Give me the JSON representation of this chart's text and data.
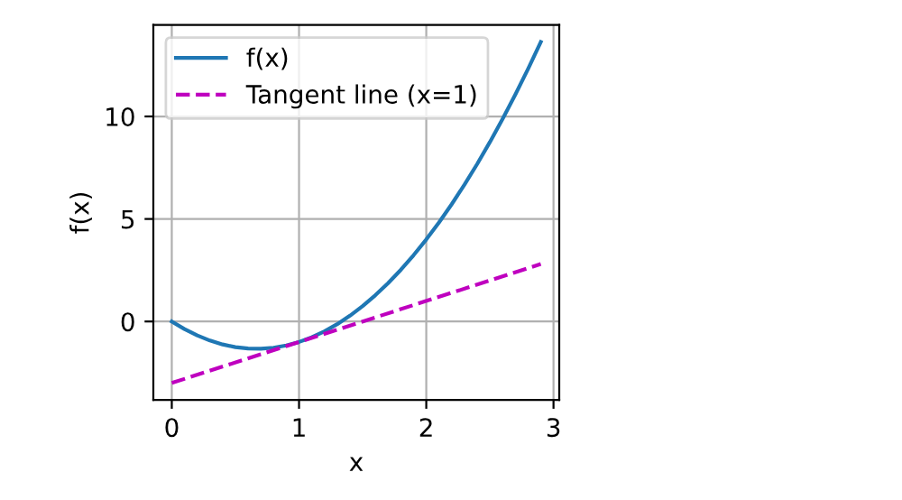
{
  "chart_data": {
    "type": "line",
    "xlabel": "x",
    "ylabel": "f(x)",
    "xlim": [
      -0.145,
      3.045
    ],
    "ylim": [
      -3.83,
      14.46
    ],
    "xticks": [
      0,
      1,
      2,
      3
    ],
    "yticks": [
      0,
      5,
      10
    ],
    "grid": true,
    "legend": "top left",
    "series": [
      {
        "name": "f(x)",
        "color": "#1f77b4",
        "line_style": "solid",
        "x": [
          0,
          0.1,
          0.2,
          0.3,
          0.4,
          0.5,
          0.6,
          0.7,
          0.8,
          0.9,
          1.0,
          1.1,
          1.2,
          1.3,
          1.4,
          1.5,
          1.6,
          1.7,
          1.8,
          1.9,
          2.0,
          2.1,
          2.2,
          2.3,
          2.4,
          2.5,
          2.6,
          2.7,
          2.8,
          2.9
        ],
        "values": [
          0,
          -0.37,
          -0.68,
          -0.93,
          -1.12,
          -1.25,
          -1.32,
          -1.33,
          -1.28,
          -1.17,
          -1,
          -0.77,
          -0.48,
          -0.13,
          0.28,
          0.75,
          1.28,
          1.87,
          2.52,
          3.23,
          4,
          4.83,
          5.72,
          6.67,
          7.68,
          8.75,
          9.88,
          11.07,
          12.32,
          13.63
        ]
      },
      {
        "name": "Tangent line (x=1)",
        "color": "#bf00bf",
        "line_style": "dashed",
        "x": [
          0,
          2.9
        ],
        "values": [
          -3,
          2.8
        ]
      }
    ]
  }
}
